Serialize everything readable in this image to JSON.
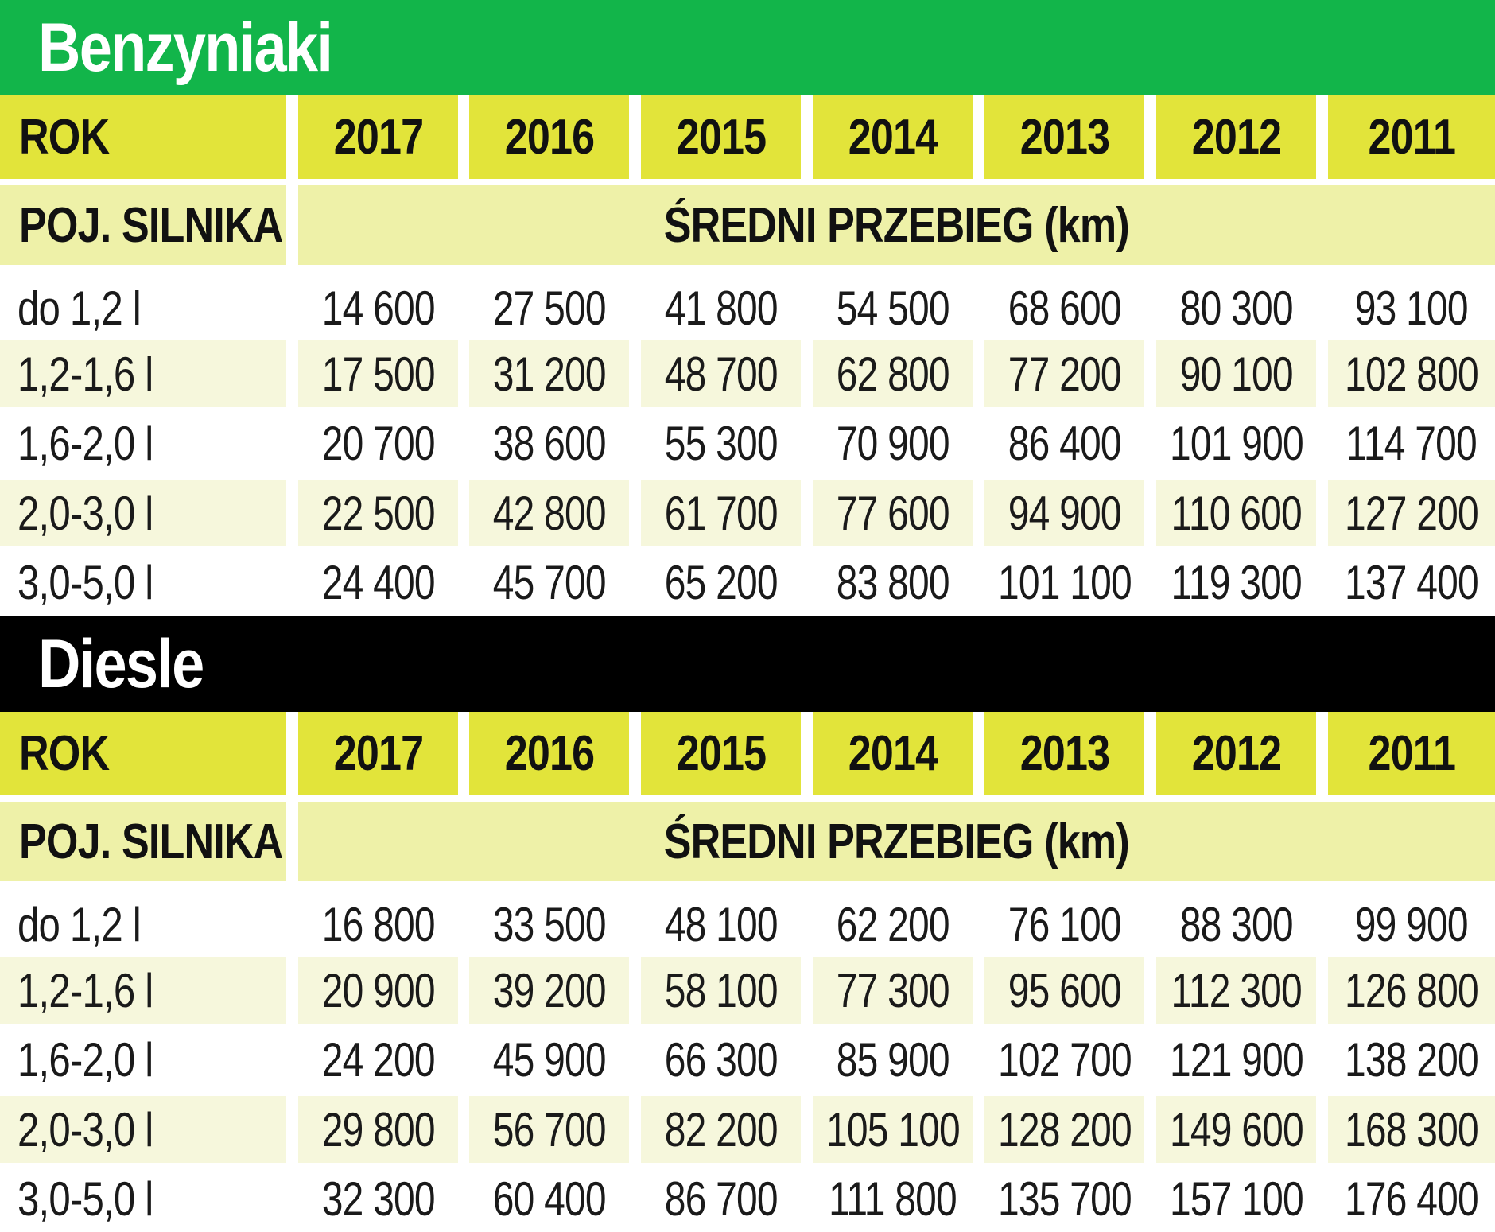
{
  "colors": {
    "petrol_banner": "#12b54a",
    "diesel_banner": "#000000",
    "header": "#e2e43a",
    "subheader": "#eef1a8",
    "stripe": "#f6f7dc"
  },
  "chart_data": {
    "type": "table",
    "sections": [
      {
        "title": "Benzyniaki",
        "banner_color": "#12b54a",
        "year_header": "ROK",
        "engine_header": "POJ. SILNIKA",
        "value_header": "ŚREDNI PRZEBIEG (km)",
        "years": [
          "2017",
          "2016",
          "2015",
          "2014",
          "2013",
          "2012",
          "2011"
        ],
        "rows": [
          {
            "label": "do 1,2 l",
            "values": [
              "14 600",
              "27 500",
              "41 800",
              "54 500",
              "68 600",
              "80 300",
              "93 100"
            ]
          },
          {
            "label": "1,2-1,6 l",
            "values": [
              "17 500",
              "31 200",
              "48 700",
              "62 800",
              "77 200",
              "90 100",
              "102 800"
            ]
          },
          {
            "label": "1,6-2,0 l",
            "values": [
              "20 700",
              "38 600",
              "55 300",
              "70 900",
              "86 400",
              "101 900",
              "114 700"
            ]
          },
          {
            "label": "2,0-3,0 l",
            "values": [
              "22 500",
              "42 800",
              "61 700",
              "77 600",
              "94 900",
              "110 600",
              "127 200"
            ]
          },
          {
            "label": "3,0-5,0 l",
            "values": [
              "24 400",
              "45 700",
              "65 200",
              "83 800",
              "101 100",
              "119 300",
              "137 400"
            ]
          }
        ]
      },
      {
        "title": "Diesle",
        "banner_color": "#000000",
        "year_header": "ROK",
        "engine_header": "POJ. SILNIKA",
        "value_header": "ŚREDNI PRZEBIEG (km)",
        "years": [
          "2017",
          "2016",
          "2015",
          "2014",
          "2013",
          "2012",
          "2011"
        ],
        "rows": [
          {
            "label": "do 1,2 l",
            "values": [
              "16 800",
              "33 500",
              "48 100",
              "62 200",
              "76 100",
              "88 300",
              "99 900"
            ]
          },
          {
            "label": "1,2-1,6 l",
            "values": [
              "20 900",
              "39 200",
              "58 100",
              "77 300",
              "95 600",
              "112 300",
              "126 800"
            ]
          },
          {
            "label": "1,6-2,0 l",
            "values": [
              "24 200",
              "45 900",
              "66 300",
              "85 900",
              "102 700",
              "121 900",
              "138 200"
            ]
          },
          {
            "label": "2,0-3,0 l",
            "values": [
              "29 800",
              "56 700",
              "82 200",
              "105 100",
              "128 200",
              "149 600",
              "168 300"
            ]
          },
          {
            "label": "3,0-5,0 l",
            "values": [
              "32 300",
              "60 400",
              "86 700",
              "111 800",
              "135 700",
              "157 100",
              "176 400"
            ]
          }
        ]
      }
    ]
  }
}
